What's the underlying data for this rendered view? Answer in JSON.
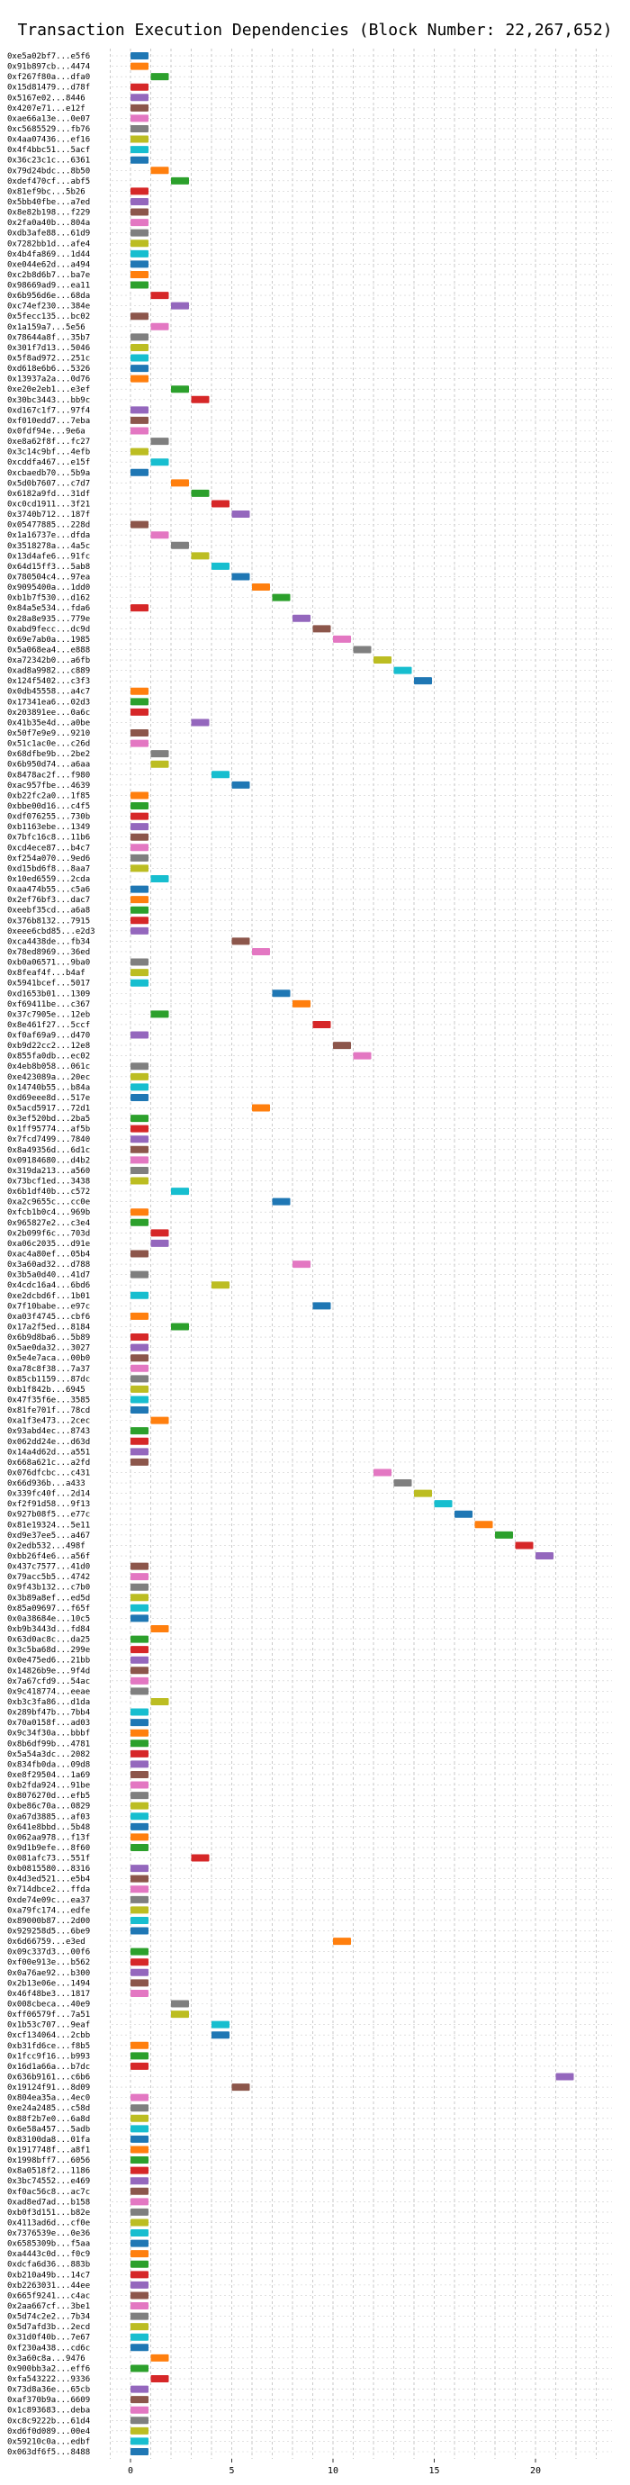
{
  "chart_data": {
    "type": "gantt",
    "title": "Transaction Execution Dependencies (Block Number: 22,267,652)",
    "xlabel": "",
    "ylabel": "",
    "xlim": [
      -1.5,
      23.5
    ],
    "xticks": [
      0,
      5,
      10,
      15,
      20
    ],
    "grid": true,
    "color_cycle": [
      "#1f77b4",
      "#ff7f0e",
      "#2ca02c",
      "#d62728",
      "#9467bd",
      "#8c564b",
      "#e377c2",
      "#7f7f7f",
      "#bcbd22",
      "#17becf"
    ],
    "transactions": [
      {
        "hash": "0xe5a02bf7...e5f6",
        "start": 0
      },
      {
        "hash": "0x91b897cb...4474",
        "start": 0
      },
      {
        "hash": "0xf267f80a...dfa0",
        "start": 1
      },
      {
        "hash": "0x15d81479...d78f",
        "start": 0
      },
      {
        "hash": "0x5167e02...8446",
        "start": 0
      },
      {
        "hash": "0x4207e71...e12f",
        "start": 0
      },
      {
        "hash": "0xae66a13e...0e07",
        "start": 0
      },
      {
        "hash": "0xc5685529...fb76",
        "start": 0
      },
      {
        "hash": "0x4aa07436...ef16",
        "start": 0
      },
      {
        "hash": "0x4f4bbc51...5acf",
        "start": 0
      },
      {
        "hash": "0x36c23c1c...6361",
        "start": 0
      },
      {
        "hash": "0x79d24bdc...8b50",
        "start": 1
      },
      {
        "hash": "0xdef470cf...abf5",
        "start": 2
      },
      {
        "hash": "0x81ef9bc...5b26",
        "start": 0
      },
      {
        "hash": "0x5bb40fbe...a7ed",
        "start": 0
      },
      {
        "hash": "0x8e82b198...f229",
        "start": 0
      },
      {
        "hash": "0x2fa0a40b...804a",
        "start": 0
      },
      {
        "hash": "0xdb3afe88...61d9",
        "start": 0
      },
      {
        "hash": "0x7282bb1d...afe4",
        "start": 0
      },
      {
        "hash": "0x4b4fa869...1d44",
        "start": 0
      },
      {
        "hash": "0xe044e62d...a494",
        "start": 0
      },
      {
        "hash": "0xc2b8d6b7...ba7e",
        "start": 0
      },
      {
        "hash": "0x98669ad9...ea11",
        "start": 0
      },
      {
        "hash": "0x6b956d6e...68da",
        "start": 1
      },
      {
        "hash": "0xc74ef230...384e",
        "start": 2
      },
      {
        "hash": "0x5fecc135...bc02",
        "start": 0
      },
      {
        "hash": "0x1a159a7...5e56",
        "start": 1
      },
      {
        "hash": "0x78644a8f...35b7",
        "start": 0
      },
      {
        "hash": "0x301f7d13...5046",
        "start": 0
      },
      {
        "hash": "0x5f8ad972...251c",
        "start": 0
      },
      {
        "hash": "0xd618e6b6...5326",
        "start": 0
      },
      {
        "hash": "0x13937a2a...0d76",
        "start": 0
      },
      {
        "hash": "0xe20e2eb1...e3ef",
        "start": 2
      },
      {
        "hash": "0x30bc3443...bb9c",
        "start": 3
      },
      {
        "hash": "0xd167c1f7...97f4",
        "start": 0
      },
      {
        "hash": "0xf010edd7...7eba",
        "start": 0
      },
      {
        "hash": "0x0fdf94e...9e6a",
        "start": 0
      },
      {
        "hash": "0xe8a62f8f...fc27",
        "start": 1
      },
      {
        "hash": "0x3c14c9bf...4efb",
        "start": 0
      },
      {
        "hash": "0xcddfa467...e15f",
        "start": 1
      },
      {
        "hash": "0xcbaedb70...5b9a",
        "start": 0
      },
      {
        "hash": "0x5d0b7607...c7d7",
        "start": 2
      },
      {
        "hash": "0x6182a9fd...31df",
        "start": 3
      },
      {
        "hash": "0xc0cd1911...3f21",
        "start": 4
      },
      {
        "hash": "0x3740b712...187f",
        "start": 5
      },
      {
        "hash": "0x05477885...228d",
        "start": 0
      },
      {
        "hash": "0x1a16737e...dfda",
        "start": 1
      },
      {
        "hash": "0x3518278a...4a5c",
        "start": 2
      },
      {
        "hash": "0x13d4afe6...91fc",
        "start": 3
      },
      {
        "hash": "0x64d15ff3...5ab8",
        "start": 4
      },
      {
        "hash": "0x780504c4...97ea",
        "start": 5
      },
      {
        "hash": "0x9095400a...1dd0",
        "start": 6
      },
      {
        "hash": "0xb1b7f530...d162",
        "start": 7
      },
      {
        "hash": "0x84a5e534...fda6",
        "start": 0
      },
      {
        "hash": "0x28a8e935...779e",
        "start": 8
      },
      {
        "hash": "0xabd9fecc...dc9d",
        "start": 9
      },
      {
        "hash": "0x69e7ab0a...1985",
        "start": 10
      },
      {
        "hash": "0x5a068ea4...e888",
        "start": 11
      },
      {
        "hash": "0xa72342b0...a6fb",
        "start": 12
      },
      {
        "hash": "0xad8a9982...c889",
        "start": 13
      },
      {
        "hash": "0x124f5402...c3f3",
        "start": 14
      },
      {
        "hash": "0x0db45558...a4c7",
        "start": 0
      },
      {
        "hash": "0x17341ea6...02d3",
        "start": 0
      },
      {
        "hash": "0x203891ee...0a6c",
        "start": 0
      },
      {
        "hash": "0x41b35e4d...a0be",
        "start": 3
      },
      {
        "hash": "0x50f7e9e9...9210",
        "start": 0
      },
      {
        "hash": "0x51c1ac0e...c26d",
        "start": 0
      },
      {
        "hash": "0x68dfbe9b...2be2",
        "start": 1
      },
      {
        "hash": "0x6b950d74...a6aa",
        "start": 1
      },
      {
        "hash": "0x8478ac2f...f980",
        "start": 4
      },
      {
        "hash": "0xac957fbe...4639",
        "start": 5
      },
      {
        "hash": "0xb22fc2a0...1f85",
        "start": 0
      },
      {
        "hash": "0xbbe00d16...c4f5",
        "start": 0
      },
      {
        "hash": "0xdf076255...730b",
        "start": 0
      },
      {
        "hash": "0xb1163ebe...1349",
        "start": 0
      },
      {
        "hash": "0x7bfc16c8...11b6",
        "start": 0
      },
      {
        "hash": "0xcd4ece87...b4c7",
        "start": 0
      },
      {
        "hash": "0xf254a070...9ed6",
        "start": 0
      },
      {
        "hash": "0xd15bd6f8...8aa7",
        "start": 0
      },
      {
        "hash": "0x10ed6559...2cda",
        "start": 1
      },
      {
        "hash": "0xaa474b55...c5a6",
        "start": 0
      },
      {
        "hash": "0x2ef76bf3...dac7",
        "start": 0
      },
      {
        "hash": "0xeebf35cd...a6a8",
        "start": 0
      },
      {
        "hash": "0x376b8132...7915",
        "start": 0
      },
      {
        "hash": "0xeee6cbd85...e2d3",
        "start": 0
      },
      {
        "hash": "0xca4438de...fb34",
        "start": 5
      },
      {
        "hash": "0x78ed8969...36ed",
        "start": 6
      },
      {
        "hash": "0xb0a06571...9ba0",
        "start": 0
      },
      {
        "hash": "0x8feaf4f...b4af",
        "start": 0
      },
      {
        "hash": "0x5941bcef...5017",
        "start": 0
      },
      {
        "hash": "0xd1653b01...1309",
        "start": 7
      },
      {
        "hash": "0xf69411be...c367",
        "start": 8
      },
      {
        "hash": "0x37c7905e...12eb",
        "start": 1
      },
      {
        "hash": "0x8e461f27...5ccf",
        "start": 9
      },
      {
        "hash": "0xf0af69a9...d470",
        "start": 0
      },
      {
        "hash": "0xb9d22cc2...12e8",
        "start": 10
      },
      {
        "hash": "0x855fa0db...ec02",
        "start": 11
      },
      {
        "hash": "0x4eb8b058...061c",
        "start": 0
      },
      {
        "hash": "0xe423089a...20ec",
        "start": 0
      },
      {
        "hash": "0x14740b55...b84a",
        "start": 0
      },
      {
        "hash": "0xd69eee8d...517e",
        "start": 0
      },
      {
        "hash": "0x5acd5917...72d1",
        "start": 6
      },
      {
        "hash": "0x3ef520bd...2ba5",
        "start": 0
      },
      {
        "hash": "0x1ff95774...af5b",
        "start": 0
      },
      {
        "hash": "0x7fcd7499...7840",
        "start": 0
      },
      {
        "hash": "0x8a49356d...6d1c",
        "start": 0
      },
      {
        "hash": "0x09184680...d4b2",
        "start": 0
      },
      {
        "hash": "0x319da213...a560",
        "start": 0
      },
      {
        "hash": "0x73bcf1ed...3438",
        "start": 0
      },
      {
        "hash": "0x6b1df40b...c572",
        "start": 2
      },
      {
        "hash": "0xa2c9655c...cc0e",
        "start": 7
      },
      {
        "hash": "0xfcb1b0c4...969b",
        "start": 0
      },
      {
        "hash": "0x965827e2...c3e4",
        "start": 0
      },
      {
        "hash": "0x2b099f6c...703d",
        "start": 1
      },
      {
        "hash": "0xa06c2035...d91e",
        "start": 1
      },
      {
        "hash": "0xac4a80ef...05b4",
        "start": 0
      },
      {
        "hash": "0x3a60ad32...d788",
        "start": 8
      },
      {
        "hash": "0x3b5a0d40...41d7",
        "start": 0
      },
      {
        "hash": "0x4cdc16a4...6bd6",
        "start": 4
      },
      {
        "hash": "0xe2dcbd6f...1b01",
        "start": 0
      },
      {
        "hash": "0x7f10babe...e97c",
        "start": 9
      },
      {
        "hash": "0xa03f4745...cbf6",
        "start": 0
      },
      {
        "hash": "0x17a2f5ed...8184",
        "start": 2
      },
      {
        "hash": "0x6b9d8ba6...5b89",
        "start": 0
      },
      {
        "hash": "0x5ae0da32...3027",
        "start": 0
      },
      {
        "hash": "0x5e4e7aca...00b0",
        "start": 0
      },
      {
        "hash": "0xa78c8f38...7a37",
        "start": 0
      },
      {
        "hash": "0x85cb1159...87dc",
        "start": 0
      },
      {
        "hash": "0xb1f842b...6945",
        "start": 0
      },
      {
        "hash": "0x47f35f6e...3585",
        "start": 0
      },
      {
        "hash": "0x81fe701f...78cd",
        "start": 0
      },
      {
        "hash": "0xa1f3e473...2cec",
        "start": 1
      },
      {
        "hash": "0x93abd4ec...8743",
        "start": 0
      },
      {
        "hash": "0x062dd24e...d63d",
        "start": 0
      },
      {
        "hash": "0x14a4d62d...a551",
        "start": 0
      },
      {
        "hash": "0x668a621c...a2fd",
        "start": 0
      },
      {
        "hash": "0x076dfcbc...c431",
        "start": 12
      },
      {
        "hash": "0x66d936b...a433",
        "start": 13
      },
      {
        "hash": "0x339fc40f...2d14",
        "start": 14
      },
      {
        "hash": "0xf2f91d58...9f13",
        "start": 15
      },
      {
        "hash": "0x927b08f5...e77c",
        "start": 16
      },
      {
        "hash": "0x81e19324...5e11",
        "start": 17
      },
      {
        "hash": "0xd9e37ee5...a467",
        "start": 18
      },
      {
        "hash": "0x2edb532...498f",
        "start": 19
      },
      {
        "hash": "0xbb26f4e6...a56f",
        "start": 20
      },
      {
        "hash": "0x437c7577...41d0",
        "start": 0
      },
      {
        "hash": "0x79acc5b5...4742",
        "start": 0
      },
      {
        "hash": "0x9f43b132...c7b0",
        "start": 0
      },
      {
        "hash": "0x3b89a8ef...ed5d",
        "start": 0
      },
      {
        "hash": "0x85a09697...f65f",
        "start": 0
      },
      {
        "hash": "0x0a38684e...10c5",
        "start": 0
      },
      {
        "hash": "0xb9b3443d...fd84",
        "start": 1
      },
      {
        "hash": "0x63d0ac8c...da25",
        "start": 0
      },
      {
        "hash": "0x3c5ba68d...299e",
        "start": 0
      },
      {
        "hash": "0x0e475ed6...21bb",
        "start": 0
      },
      {
        "hash": "0x14826b9e...9f4d",
        "start": 0
      },
      {
        "hash": "0x7a67cfd9...54ac",
        "start": 0
      },
      {
        "hash": "0x9c418774...eeae",
        "start": 0
      },
      {
        "hash": "0xb3c3fa86...d1da",
        "start": 1
      },
      {
        "hash": "0x289bf47b...7bb4",
        "start": 0
      },
      {
        "hash": "0x70a0158f...ad03",
        "start": 0
      },
      {
        "hash": "0x9c34f30a...bbbf",
        "start": 0
      },
      {
        "hash": "0x8b6df99b...4781",
        "start": 0
      },
      {
        "hash": "0x5a54a3dc...2082",
        "start": 0
      },
      {
        "hash": "0x834fb0da...09d8",
        "start": 0
      },
      {
        "hash": "0xe8f29504...1a69",
        "start": 0
      },
      {
        "hash": "0xb2fda924...91be",
        "start": 0
      },
      {
        "hash": "0x8076270d...efb5",
        "start": 0
      },
      {
        "hash": "0xbe86c70a...0829",
        "start": 0
      },
      {
        "hash": "0xa67d3885...af03",
        "start": 0
      },
      {
        "hash": "0x641e8bbd...5b48",
        "start": 0
      },
      {
        "hash": "0x062aa978...f13f",
        "start": 0
      },
      {
        "hash": "0x9d1b9efe...8f60",
        "start": 0
      },
      {
        "hash": "0x081afc73...551f",
        "start": 3
      },
      {
        "hash": "0xb0815580...8316",
        "start": 0
      },
      {
        "hash": "0x4d3ed521...e5b4",
        "start": 0
      },
      {
        "hash": "0x714dbce2...ffda",
        "start": 0
      },
      {
        "hash": "0xde74e09c...ea37",
        "start": 0
      },
      {
        "hash": "0xa79fc174...edfe",
        "start": 0
      },
      {
        "hash": "0x89000b87...2d00",
        "start": 0
      },
      {
        "hash": "0x929258d5...6be9",
        "start": 0
      },
      {
        "hash": "0x6d66759...e3ed",
        "start": 10
      },
      {
        "hash": "0x09c337d3...00f6",
        "start": 0
      },
      {
        "hash": "0xf00e913e...b562",
        "start": 0
      },
      {
        "hash": "0x0a76ae92...b300",
        "start": 0
      },
      {
        "hash": "0x2b13e06e...1494",
        "start": 0
      },
      {
        "hash": "0x46f48be3...1817",
        "start": 0
      },
      {
        "hash": "0x008cbeca...40e9",
        "start": 2
      },
      {
        "hash": "0xff06579f...7a51",
        "start": 2
      },
      {
        "hash": "0x1b53c707...9eaf",
        "start": 4
      },
      {
        "hash": "0xcf134064...2cbb",
        "start": 4
      },
      {
        "hash": "0xb31fd6ce...f8b5",
        "start": 0
      },
      {
        "hash": "0x1fcc9f16...b993",
        "start": 0
      },
      {
        "hash": "0x16d1a66a...b7dc",
        "start": 0
      },
      {
        "hash": "0x636b9161...c6b6",
        "start": 21
      },
      {
        "hash": "0x19124f91...8d09",
        "start": 5
      },
      {
        "hash": "0x804ea35a...4ec0",
        "start": 0
      },
      {
        "hash": "0xe24a2485...c58d",
        "start": 0
      },
      {
        "hash": "0x88f2b7e0...6a8d",
        "start": 0
      },
      {
        "hash": "0x6e58a457...5adb",
        "start": 0
      },
      {
        "hash": "0x83100da8...01fa",
        "start": 0
      },
      {
        "hash": "0x1917748f...a8f1",
        "start": 0
      },
      {
        "hash": "0x1998bff7...6056",
        "start": 0
      },
      {
        "hash": "0x8a0518f2...1186",
        "start": 0
      },
      {
        "hash": "0x3bc74552...e469",
        "start": 0
      },
      {
        "hash": "0xf0ac56c8...ac7c",
        "start": 0
      },
      {
        "hash": "0xad8ed7ad...b158",
        "start": 0
      },
      {
        "hash": "0xb0f3d151...b82e",
        "start": 0
      },
      {
        "hash": "0x4113ad6d...cf0e",
        "start": 0
      },
      {
        "hash": "0x7376539e...0e36",
        "start": 0
      },
      {
        "hash": "0x6585309b...f5aa",
        "start": 0
      },
      {
        "hash": "0xa4443c0d...f0c9",
        "start": 0
      },
      {
        "hash": "0xdcfa6d36...883b",
        "start": 0
      },
      {
        "hash": "0xb210a49b...14c7",
        "start": 0
      },
      {
        "hash": "0xb2263031...44ee",
        "start": 0
      },
      {
        "hash": "0x665f9241...c4ac",
        "start": 0
      },
      {
        "hash": "0x2aa667cf...3be1",
        "start": 0
      },
      {
        "hash": "0x5d74c2e2...7b34",
        "start": 0
      },
      {
        "hash": "0x5d7afd3b...2ecd",
        "start": 0
      },
      {
        "hash": "0x31d0f40b...7e67",
        "start": 0
      },
      {
        "hash": "0xf230a438...cd6c",
        "start": 0
      },
      {
        "hash": "0x3a60c8a...9476",
        "start": 1
      },
      {
        "hash": "0x900bb3a2...eff6",
        "start": 0
      },
      {
        "hash": "0xfa543222...9336",
        "start": 1
      },
      {
        "hash": "0x73d8a36e...65cb",
        "start": 0
      },
      {
        "hash": "0xaf370b9a...6609",
        "start": 0
      },
      {
        "hash": "0x1c893683...deba",
        "start": 0
      },
      {
        "hash": "0xc8c9222b...61d4",
        "start": 0
      },
      {
        "hash": "0xd6f0d089...00e4",
        "start": 0
      },
      {
        "hash": "0x59210c0a...edbf",
        "start": 0
      },
      {
        "hash": "0x063df6f5...8488",
        "start": 0
      }
    ]
  }
}
